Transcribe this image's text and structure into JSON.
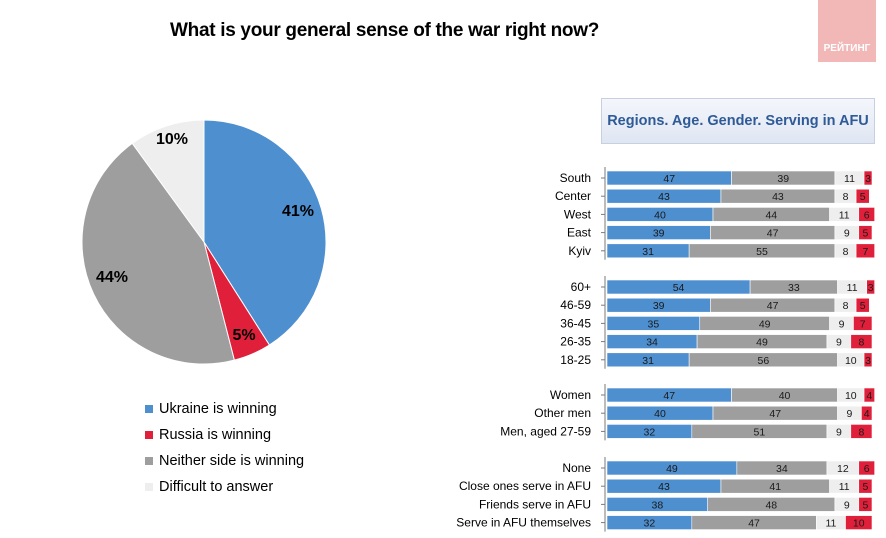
{
  "title": "What is your general sense of the war right now?",
  "logo_text": "РЕЙТИНГ",
  "colors": {
    "ukraine": "#4e8fd0",
    "russia": "#e0203a",
    "neither": "#9e9e9e",
    "difficult": "#eeeeee"
  },
  "chart_data": [
    {
      "type": "pie",
      "title": "What is your general sense of the war right now?",
      "slices": [
        {
          "label": "Ukraine is winning",
          "value": 41,
          "text": "41%"
        },
        {
          "label": "Russia is winning",
          "value": 5,
          "text": "5%"
        },
        {
          "label": "Neither side is winning",
          "value": 44,
          "text": "44%"
        },
        {
          "label": "Difficult to answer",
          "value": 10,
          "text": "10%"
        }
      ],
      "legend": [
        "Ukraine is winning",
        "Russia is winning",
        "Neither side is winning",
        "Difficult to answer"
      ]
    },
    {
      "type": "bar",
      "orientation": "horizontal-stacked",
      "title": "Regions. Age. Gender. Serving in AFU",
      "series": [
        "Ukraine is winning",
        "Neither side is winning",
        "Difficult to answer",
        "Russia is winning"
      ],
      "groups": [
        {
          "rows": [
            {
              "label": "South",
              "values": [
                47,
                39,
                11,
                3
              ]
            },
            {
              "label": "Center",
              "values": [
                43,
                43,
                8,
                5
              ]
            },
            {
              "label": "West",
              "values": [
                40,
                44,
                11,
                6
              ]
            },
            {
              "label": "East",
              "values": [
                39,
                47,
                9,
                5
              ]
            },
            {
              "label": "Kyiv",
              "values": [
                31,
                55,
                8,
                7
              ]
            }
          ]
        },
        {
          "rows": [
            {
              "label": "60+",
              "values": [
                54,
                33,
                11,
                3
              ]
            },
            {
              "label": "46-59",
              "values": [
                39,
                47,
                8,
                5
              ]
            },
            {
              "label": "36-45",
              "values": [
                35,
                49,
                9,
                7
              ]
            },
            {
              "label": "26-35",
              "values": [
                34,
                49,
                9,
                8
              ]
            },
            {
              "label": "18-25",
              "values": [
                31,
                56,
                10,
                3
              ]
            }
          ]
        },
        {
          "rows": [
            {
              "label": "Women",
              "values": [
                47,
                40,
                10,
                4
              ]
            },
            {
              "label": "Other men",
              "values": [
                40,
                47,
                9,
                4
              ]
            },
            {
              "label": "Men, aged 27-59",
              "values": [
                32,
                51,
                9,
                8
              ]
            }
          ]
        },
        {
          "rows": [
            {
              "label": "None",
              "values": [
                49,
                34,
                12,
                6
              ]
            },
            {
              "label": "Close ones serve in AFU",
              "values": [
                43,
                41,
                11,
                5
              ]
            },
            {
              "label": "Friends serve in AFU",
              "values": [
                38,
                48,
                9,
                5
              ]
            },
            {
              "label": "Serve in AFU themselves",
              "values": [
                32,
                47,
                11,
                10
              ]
            }
          ]
        }
      ]
    }
  ]
}
